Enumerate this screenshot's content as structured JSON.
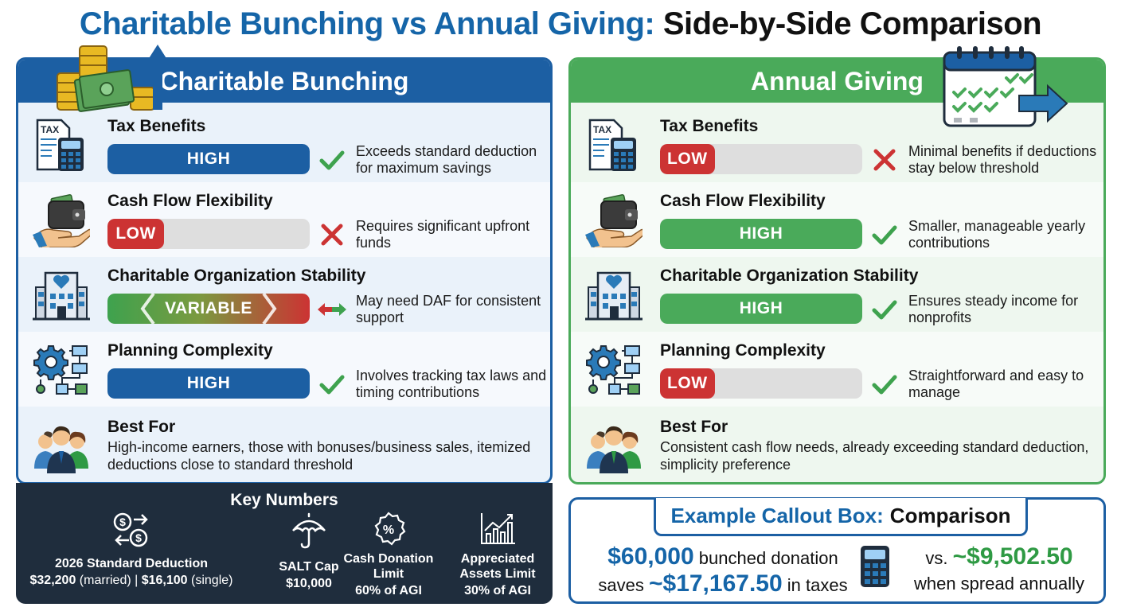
{
  "title": {
    "part1": "Charitable Bunching vs Annual Giving:",
    "part2": "Side-by-Side Comparison"
  },
  "bunching": {
    "header": "Charitable Bunching",
    "rows": [
      {
        "label": "Tax Benefits",
        "level": "HIGH",
        "fill": 1.0,
        "color": "#1c5fa3",
        "mark": "check",
        "desc": "Exceeds standard deduction for maximum savings"
      },
      {
        "label": "Cash Flow Flexibility",
        "level": "LOW",
        "fill": 0.28,
        "color": "#cc3333",
        "mark": "cross",
        "desc": "Requires significant upfront funds"
      },
      {
        "label": "Charitable Organization Stability",
        "level": "VARIABLE",
        "fill": 1.0,
        "color": "gradient",
        "mark": "arrows",
        "desc": "May need DAF for consistent support"
      },
      {
        "label": "Planning Complexity",
        "level": "HIGH",
        "fill": 1.0,
        "color": "#1c5fa3",
        "mark": "check",
        "desc": "Involves tracking tax laws and timing contributions"
      }
    ],
    "best_for": {
      "label": "Best For",
      "desc": "High-income earners, those with bonuses/business sales, itemized deductions close to standard threshold"
    }
  },
  "annual": {
    "header": "Annual Giving",
    "rows": [
      {
        "label": "Tax Benefits",
        "level": "LOW",
        "fill": 0.27,
        "color": "#cc3333",
        "mark": "cross",
        "desc": "Minimal benefits if deductions stay below threshold"
      },
      {
        "label": "Cash Flow Flexibility",
        "level": "HIGH",
        "fill": 1.0,
        "color": "#4aaa5a",
        "mark": "check",
        "desc": "Smaller, manageable yearly contributions"
      },
      {
        "label": "Charitable Organization Stability",
        "level": "HIGH",
        "fill": 1.0,
        "color": "#4aaa5a",
        "mark": "check",
        "desc": "Ensures steady income for nonprofits"
      },
      {
        "label": "Planning Complexity",
        "level": "LOW",
        "fill": 0.27,
        "color": "#cc3333",
        "mark": "check",
        "desc": "Straightforward and easy to manage"
      }
    ],
    "best_for": {
      "label": "Best For",
      "desc": "Consistent cash flow needs, already exceeding standard deduction, simplicity preference"
    }
  },
  "key_numbers": {
    "title": "Key Numbers",
    "items": [
      {
        "label": "2026 Standard Deduction",
        "value_a": "$32,200",
        "value_a_note": " (married) | ",
        "value_b": "$16,100",
        "value_b_note": " (single)",
        "icon": "money-exchange-icon"
      },
      {
        "label": "SALT Cap",
        "value": "$10,000",
        "icon": "umbrella-icon"
      },
      {
        "label_1": "Cash Donation",
        "label_2": "Limit",
        "value": "60% of AGI",
        "icon": "percent-badge-icon"
      },
      {
        "label_1": "Appreciated",
        "label_2": "Assets Limit",
        "value": "30% of AGI",
        "icon": "growth-chart-icon"
      }
    ]
  },
  "callout": {
    "title_1": "Example Callout Box:",
    "title_2": "Comparison",
    "left_amount": "$60,000",
    "left_text_1": " bunched donation",
    "left_text_2": "saves ",
    "left_savings": "~$17,167.50",
    "left_text_3": " in taxes",
    "right_text_1": "vs. ",
    "right_amount": "~$9,502.50",
    "right_text_2": "when spread annually"
  }
}
